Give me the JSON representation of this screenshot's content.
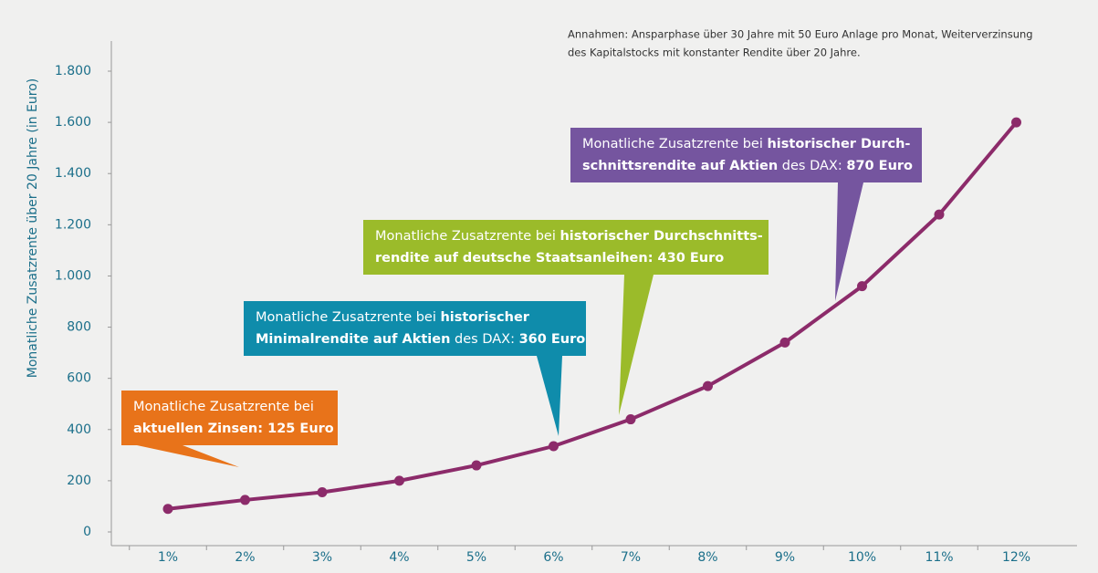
{
  "chart_data": {
    "type": "line",
    "y_label": "Monatliche Zusatzrente über 20 Jahre (in Euro)",
    "note": [
      "Annahmen: Ansparphase über 30 Jahre mit 50 Euro Anlage pro Monat, Weiterverzinsung",
      "des Kapitalstocks mit konstanter Rendite über 20 Jahre."
    ],
    "categories": [
      "1%",
      "2%",
      "3%",
      "4%",
      "5%",
      "6%",
      "7%",
      "8%",
      "9%",
      "10%",
      "11%",
      "12%"
    ],
    "values": [
      90,
      125,
      155,
      200,
      260,
      335,
      440,
      570,
      740,
      960,
      1240,
      1600
    ],
    "color": "#8c2b6a",
    "ylim": [
      0,
      1800
    ],
    "yticks": [
      0,
      200,
      400,
      600,
      800,
      {
        "value": 1000,
        "label": "1.000"
      },
      {
        "value": 1200,
        "label": "1.200"
      },
      {
        "value": 1400,
        "label": "1.400"
      },
      {
        "value": 1600,
        "label": "1.600"
      },
      {
        "value": 1800,
        "label": "1.800"
      }
    ],
    "annotations": [
      {
        "color": "#e8731a",
        "lines": [
          [
            {
              "text": "Monatliche Zusatzrente bei",
              "bold": false
            }
          ],
          [
            {
              "text": "aktuellen Zinsen: 125 Euro",
              "bold": true
            }
          ]
        ]
      },
      {
        "color": "#0f8cab",
        "lines": [
          [
            {
              "text": "Monatliche Zusatzrente bei ",
              "bold": false
            },
            {
              "text": "historischer",
              "bold": true
            }
          ],
          [
            {
              "text": "Minimalrendite auf Aktien",
              "bold": true
            },
            {
              "text": " des DAX: ",
              "bold": false
            },
            {
              "text": "360 Euro",
              "bold": true
            }
          ]
        ]
      },
      {
        "color": "#9bbb2a",
        "lines": [
          [
            {
              "text": "Monatliche Zusatzrente bei ",
              "bold": false
            },
            {
              "text": "historischer Durchschnitts-",
              "bold": true
            }
          ],
          [
            {
              "text": "rendite auf deutsche Staatsanleihen: 430 Euro",
              "bold": true
            }
          ]
        ]
      },
      {
        "color": "#75559f",
        "lines": [
          [
            {
              "text": "Monatliche Zusatzrente bei ",
              "bold": false
            },
            {
              "text": "historischer Durch-",
              "bold": true
            }
          ],
          [
            {
              "text": "schnittsrendite auf Aktien",
              "bold": true
            },
            {
              "text": " des DAX: ",
              "bold": false
            },
            {
              "text": "870 Euro",
              "bold": true
            }
          ]
        ]
      }
    ]
  }
}
